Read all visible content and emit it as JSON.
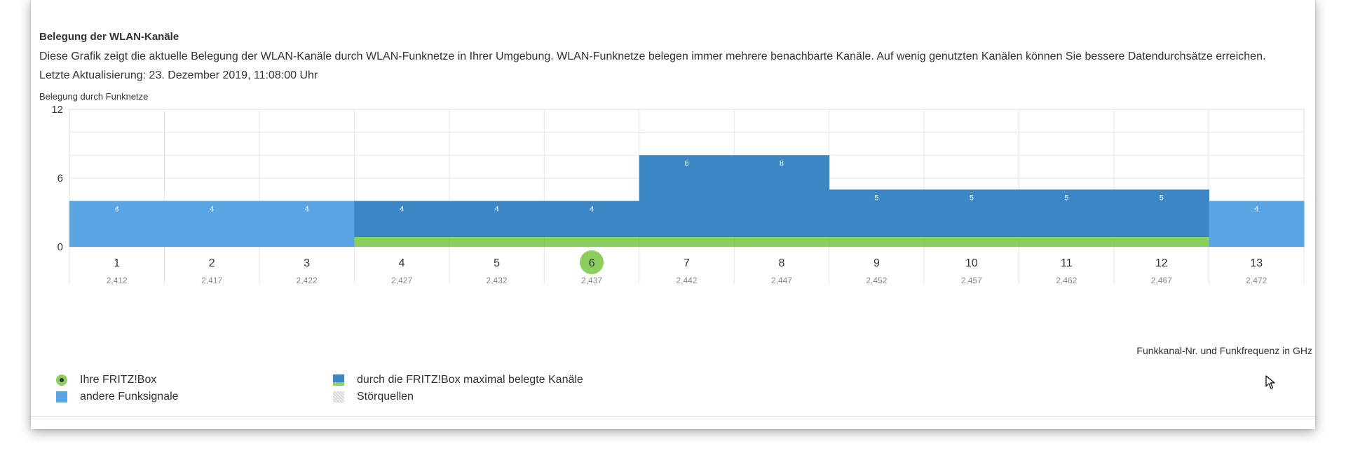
{
  "panel": {
    "title": "Belegung der WLAN-Kanäle",
    "description": "Diese Grafik zeigt die aktuelle Belegung der WLAN-Kanäle durch WLAN-Funknetze in Ihrer Umgebung. WLAN-Funknetze belegen immer mehrere benachbarte Kanäle. Auf wenig genutzten Kanälen können Sie bessere Datendurchsätze erreichen.",
    "last_update": "Letzte Aktualisierung: 23. Dezember 2019, 11:08:00 Uhr"
  },
  "chart_data": {
    "type": "bar",
    "ylabel": "Belegung durch Funknetze",
    "xlabel": "Funkkanal-Nr. und Funkfrequenz in GHz",
    "ylim": [
      0,
      12
    ],
    "yticks": [
      0,
      6,
      12
    ],
    "categories": [
      "1",
      "2",
      "3",
      "4",
      "5",
      "6",
      "7",
      "8",
      "9",
      "10",
      "11",
      "12",
      "13"
    ],
    "frequencies": [
      "2,412",
      "2,417",
      "2,422",
      "2,427",
      "2,432",
      "2,437",
      "2,442",
      "2,447",
      "2,452",
      "2,457",
      "2,462",
      "2,467",
      "2,472"
    ],
    "values": [
      4,
      4,
      4,
      4,
      4,
      4,
      8,
      8,
      5,
      5,
      5,
      5,
      4
    ],
    "fritzbox_channel": "6",
    "fritzbox_band_channels": [
      "4",
      "5",
      "6",
      "7",
      "8",
      "9",
      "10",
      "11",
      "12"
    ],
    "grid": true,
    "colors": {
      "other_signals": "#58a6e4",
      "fritz_band": "#3b87c6",
      "fritz_marker": "#8ccf5e",
      "grid": "#e6e6e6"
    }
  },
  "legend": {
    "fritzbox": "Ihre FRITZ!Box",
    "other": "andere Funksignale",
    "max_band": "durch die FRITZ!Box maximal belegte Kanäle",
    "interference": "Störquellen"
  }
}
